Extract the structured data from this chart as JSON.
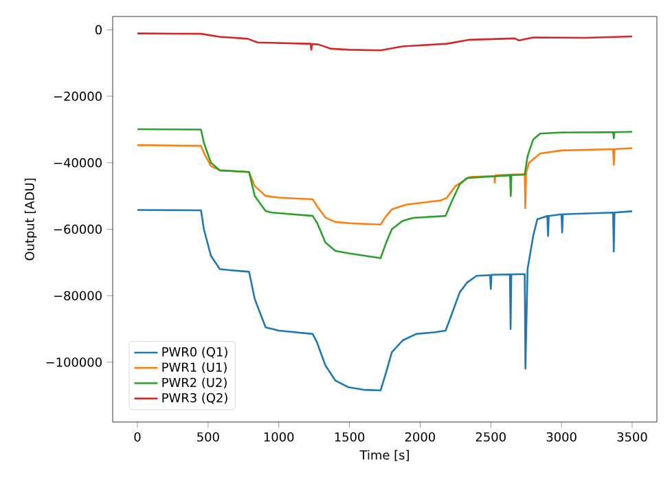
{
  "chart_data": {
    "type": "line",
    "xlabel": "Time [s]",
    "ylabel": "Output [ADU]",
    "xlim": [
      -175,
      3675
    ],
    "ylim": [
      -118000,
      4000
    ],
    "xticks": [
      0,
      500,
      1000,
      1500,
      2000,
      2500,
      3000,
      3500
    ],
    "yticks": [
      0,
      {
        "value": -20000,
        "label": "−20000"
      },
      {
        "value": -40000,
        "label": "−40000"
      },
      {
        "value": -60000,
        "label": "−60000"
      },
      {
        "value": -80000,
        "label": "−80000"
      },
      {
        "value": -100000,
        "label": "−100000"
      }
    ],
    "legend": "bottom left",
    "grid": false,
    "marker": "none",
    "line_style": "solid",
    "series": [
      {
        "name": "PWR0 (Q1)",
        "color": "#1f77b4",
        "x": [
          0,
          450,
          470,
          520,
          583,
          650,
          790,
          830,
          907,
          1000,
          1240,
          1270,
          1330,
          1400,
          1490,
          1600,
          1720,
          1760,
          1800,
          1875,
          1972,
          2100,
          2180,
          2220,
          2280,
          2333,
          2400,
          2495,
          2500,
          2505,
          2635,
          2640,
          2645,
          2740,
          2745,
          2760,
          2800,
          2829,
          2900,
          2905,
          2910,
          3000,
          3005,
          3010,
          3365,
          3370,
          3375,
          3500
        ],
        "values": [
          -54200,
          -54300,
          -60000,
          -68000,
          -72000,
          -72300,
          -72800,
          -81000,
          -89500,
          -90500,
          -91500,
          -94000,
          -101000,
          -105500,
          -107500,
          -108300,
          -108500,
          -103000,
          -97000,
          -93500,
          -91500,
          -91000,
          -90500,
          -86000,
          -79000,
          -76000,
          -74000,
          -73800,
          -78000,
          -73700,
          -73600,
          -90000,
          -73600,
          -73500,
          -101900,
          -72000,
          -62000,
          -57000,
          -56000,
          -62000,
          -56000,
          -55500,
          -61000,
          -55500,
          -55000,
          -66700,
          -55000,
          -54600
        ]
      },
      {
        "name": "PWR1 (U1)",
        "color": "#ff7f0e",
        "x": [
          0,
          450,
          470,
          520,
          583,
          790,
          830,
          907,
          1000,
          1240,
          1270,
          1330,
          1400,
          1500,
          1720,
          1760,
          1800,
          1900,
          2150,
          2190,
          2250,
          2350,
          2525,
          2528,
          2532,
          2740,
          2744,
          2750,
          2770,
          2850,
          3000,
          3365,
          3370,
          3375,
          3500
        ],
        "values": [
          -34700,
          -34900,
          -37000,
          -41000,
          -42300,
          -42800,
          -47000,
          -50000,
          -50500,
          -51000,
          -53000,
          -56500,
          -57800,
          -58200,
          -58600,
          -56000,
          -54000,
          -52600,
          -51300,
          -50500,
          -47000,
          -44300,
          -44000,
          -46000,
          -43800,
          -43400,
          -53700,
          -43000,
          -40000,
          -37200,
          -36300,
          -35900,
          -40600,
          -35900,
          -35600
        ]
      },
      {
        "name": "PWR2 (U2)",
        "color": "#2ca02c",
        "x": [
          0,
          450,
          470,
          520,
          583,
          790,
          830,
          907,
          950,
          1240,
          1270,
          1330,
          1400,
          1500,
          1720,
          1760,
          1800,
          1875,
          1950,
          2180,
          2220,
          2280,
          2330,
          2636,
          2641,
          2646,
          2740,
          2760,
          2800,
          2850,
          3000,
          3365,
          3370,
          3375,
          3500
        ],
        "values": [
          -29900,
          -30000,
          -34000,
          -40000,
          -42300,
          -42800,
          -50000,
          -54500,
          -55000,
          -56000,
          -58000,
          -64000,
          -66500,
          -67300,
          -68700,
          -64000,
          -60000,
          -57500,
          -56600,
          -56000,
          -52000,
          -46500,
          -44600,
          -43800,
          -50000,
          -43700,
          -43600,
          -38000,
          -33000,
          -31200,
          -30900,
          -30800,
          -32700,
          -30800,
          -30700
        ]
      },
      {
        "name": "PWR3 (Q2)",
        "color": "#d62728",
        "x": [
          0,
          450,
          580,
          780,
          850,
          1200,
          1225,
          1230,
          1235,
          1280,
          1370,
          1500,
          1720,
          1875,
          2190,
          2350,
          2670,
          2700,
          2800,
          3170,
          3500
        ],
        "values": [
          -1100,
          -1200,
          -2100,
          -2700,
          -3800,
          -4200,
          -4200,
          -6000,
          -4300,
          -4400,
          -5700,
          -6000,
          -6200,
          -5000,
          -4200,
          -3000,
          -2600,
          -3200,
          -2300,
          -2400,
          -2000
        ]
      }
    ]
  }
}
